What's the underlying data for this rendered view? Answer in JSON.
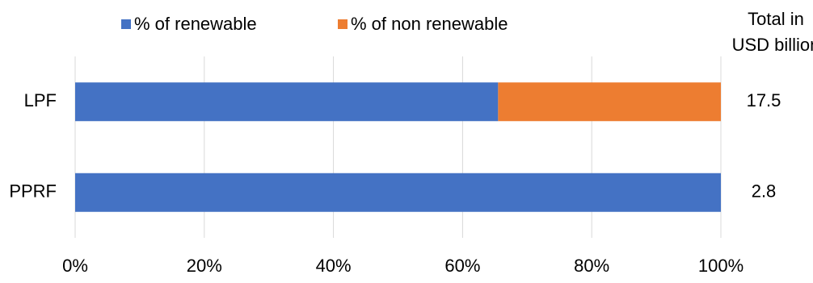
{
  "chart_data": {
    "type": "stacked-bar-horizontal",
    "categories": [
      "LPF",
      "PPRF"
    ],
    "series": [
      {
        "name": "% of renewable",
        "color": "#4472c4",
        "values": [
          65.5,
          100
        ]
      },
      {
        "name": "% of non renewable",
        "color": "#ed7d31",
        "values": [
          34.5,
          0
        ]
      }
    ],
    "xlim": [
      0,
      100
    ],
    "xticks": [
      {
        "value": 0,
        "label": "0%"
      },
      {
        "value": 20,
        "label": "20%"
      },
      {
        "value": 40,
        "label": "40%"
      },
      {
        "value": 60,
        "label": "60%"
      },
      {
        "value": 80,
        "label": "80%"
      },
      {
        "value": 100,
        "label": "100%"
      }
    ],
    "grid": true,
    "legend": "top",
    "totals": {
      "title": "Total in USD billion",
      "values": [
        17.5,
        2.8
      ]
    }
  }
}
